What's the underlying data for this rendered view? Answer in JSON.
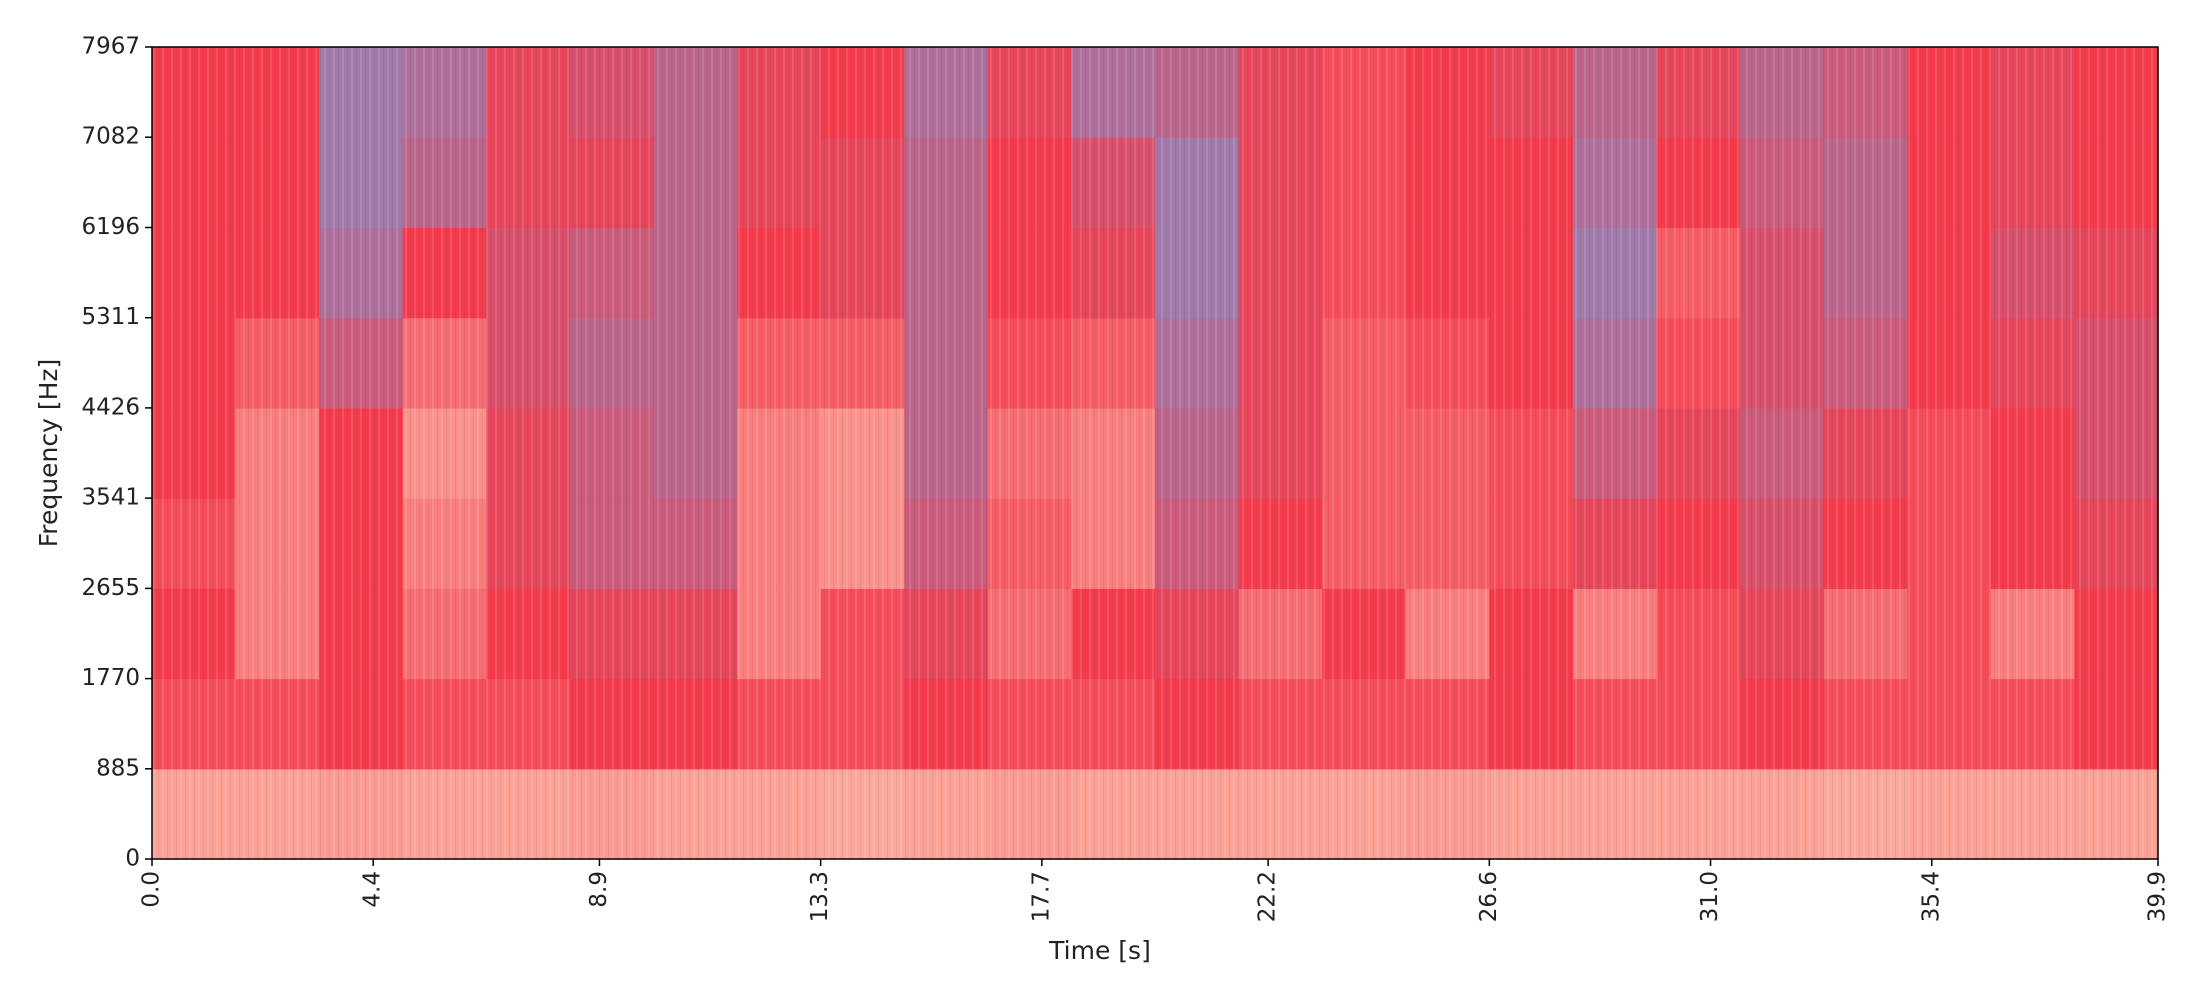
{
  "chart_data": {
    "type": "spectrogram",
    "xlabel": "Time [s]",
    "ylabel": "Frequency [Hz]",
    "xlim": [
      0,
      39.9
    ],
    "ylim": [
      0,
      7967
    ],
    "xticks": [
      {
        "value": 0,
        "label": "0.0"
      },
      4.4,
      8.9,
      13.3,
      17.7,
      22.2,
      26.6,
      {
        "value": 31,
        "label": "31.0"
      },
      35.4,
      39.9
    ],
    "yticks": [
      0,
      885,
      1770,
      2655,
      3541,
      4426,
      5311,
      6196,
      7082,
      7967
    ],
    "colormap": [
      "#68a4ea",
      "#f43b4c",
      "#ffe6c9"
    ],
    "z": [
      [
        0.8,
        0.8,
        0.78,
        0.8,
        0.8,
        0.78,
        0.8,
        0.8,
        0.82,
        0.8,
        0.78,
        0.8,
        0.8,
        0.8,
        0.8,
        0.78,
        0.8,
        0.8,
        0.8,
        0.8,
        0.82,
        0.8,
        0.8,
        0.8
      ],
      [
        0.55,
        0.55,
        0.5,
        0.55,
        0.55,
        0.5,
        0.5,
        0.55,
        0.55,
        0.5,
        0.55,
        0.55,
        0.5,
        0.55,
        0.55,
        0.55,
        0.5,
        0.55,
        0.55,
        0.5,
        0.55,
        0.55,
        0.55,
        0.5
      ],
      [
        0.5,
        0.7,
        0.5,
        0.65,
        0.5,
        0.45,
        0.45,
        0.7,
        0.55,
        0.45,
        0.65,
        0.5,
        0.45,
        0.65,
        0.5,
        0.7,
        0.5,
        0.7,
        0.55,
        0.45,
        0.65,
        0.55,
        0.7,
        0.5
      ],
      [
        0.55,
        0.7,
        0.5,
        0.7,
        0.45,
        0.35,
        0.35,
        0.7,
        0.75,
        0.35,
        0.6,
        0.7,
        0.35,
        0.5,
        0.6,
        0.6,
        0.55,
        0.45,
        0.5,
        0.4,
        0.5,
        0.55,
        0.5,
        0.45
      ],
      [
        0.5,
        0.7,
        0.5,
        0.75,
        0.45,
        0.35,
        0.3,
        0.7,
        0.75,
        0.3,
        0.65,
        0.7,
        0.3,
        0.45,
        0.6,
        0.6,
        0.55,
        0.35,
        0.45,
        0.35,
        0.45,
        0.55,
        0.5,
        0.4
      ],
      [
        0.5,
        0.6,
        0.35,
        0.65,
        0.4,
        0.3,
        0.3,
        0.6,
        0.6,
        0.3,
        0.55,
        0.6,
        0.25,
        0.45,
        0.6,
        0.55,
        0.5,
        0.25,
        0.55,
        0.4,
        0.35,
        0.5,
        0.45,
        0.4
      ],
      [
        0.5,
        0.5,
        0.25,
        0.5,
        0.4,
        0.35,
        0.3,
        0.5,
        0.45,
        0.3,
        0.5,
        0.45,
        0.2,
        0.45,
        0.55,
        0.5,
        0.5,
        0.2,
        0.6,
        0.4,
        0.3,
        0.5,
        0.4,
        0.45
      ],
      [
        0.5,
        0.5,
        0.2,
        0.3,
        0.45,
        0.45,
        0.3,
        0.45,
        0.45,
        0.3,
        0.5,
        0.4,
        0.2,
        0.45,
        0.55,
        0.5,
        0.5,
        0.25,
        0.5,
        0.35,
        0.3,
        0.5,
        0.45,
        0.5
      ],
      [
        0.5,
        0.5,
        0.2,
        0.25,
        0.45,
        0.4,
        0.3,
        0.45,
        0.5,
        0.25,
        0.45,
        0.25,
        0.3,
        0.45,
        0.55,
        0.5,
        0.45,
        0.3,
        0.45,
        0.3,
        0.35,
        0.5,
        0.45,
        0.5
      ]
    ]
  }
}
